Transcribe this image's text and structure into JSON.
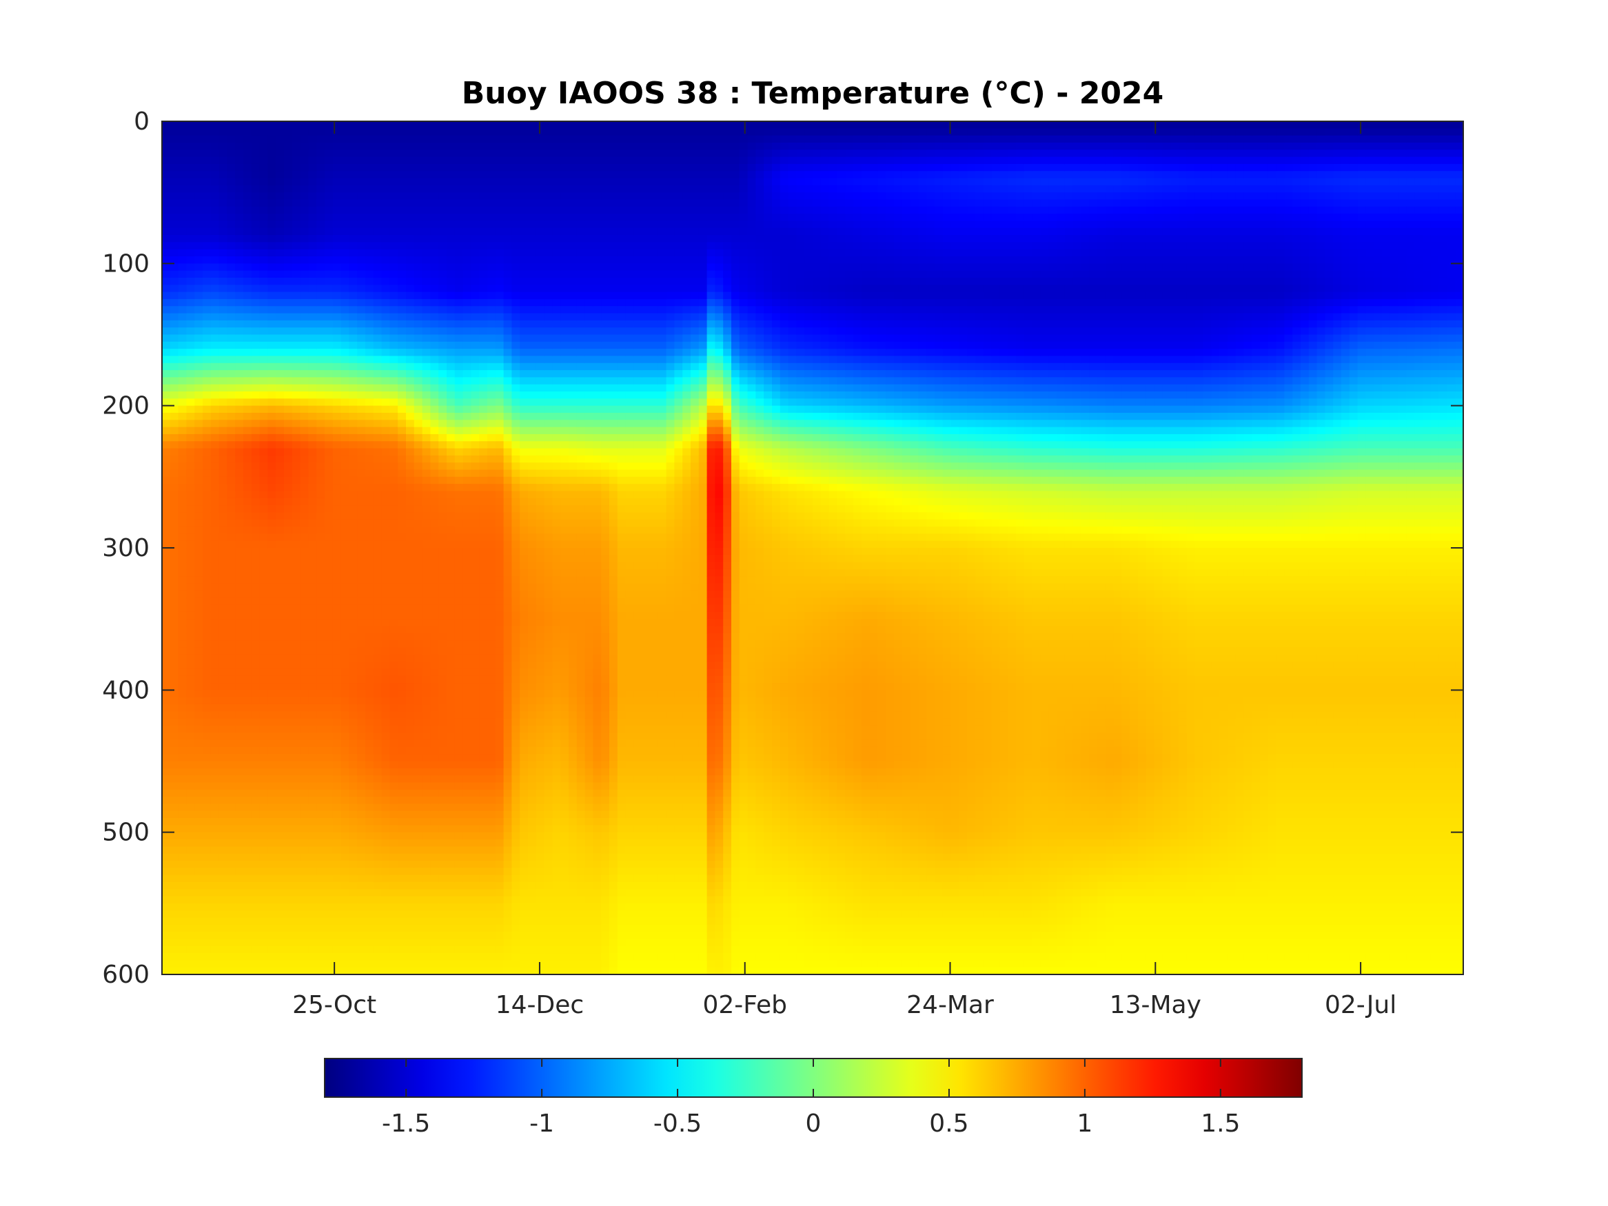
{
  "chart_data": {
    "type": "heatmap",
    "title": "Buoy IAOOS 38 : Temperature (°C) - 2024",
    "xlabel": "",
    "ylabel": "",
    "x_tick_labels": [
      "25-Oct",
      "14-Dec",
      "02-Feb",
      "24-Mar",
      "13-May",
      "02-Jul"
    ],
    "x_tick_days": [
      60,
      110,
      160,
      210,
      260,
      310
    ],
    "x_range_days": [
      18,
      335
    ],
    "y_tick_labels": [
      "0",
      "100",
      "200",
      "300",
      "400",
      "500",
      "600"
    ],
    "y_ticks": [
      0,
      100,
      200,
      300,
      400,
      500,
      600
    ],
    "ylim": [
      0,
      600
    ],
    "y_reversed": true,
    "grid": false,
    "colormap": "jet",
    "color_range": [
      -1.8,
      1.8
    ],
    "colorbar": {
      "placement": "bottom",
      "tick_labels": [
        "-1.5",
        "-1",
        "-0.5",
        "0",
        "0.5",
        "1",
        "1.5"
      ],
      "ticks": [
        -1.5,
        -1,
        -0.5,
        0,
        0.5,
        1,
        1.5
      ]
    },
    "depth_levels": [
      5,
      40,
      80,
      120,
      160,
      200,
      230,
      260,
      300,
      350,
      400,
      450,
      500,
      550,
      600
    ],
    "columns": [
      {
        "day": 18,
        "values": [
          -1.7,
          -1.6,
          -1.5,
          -1.2,
          -0.6,
          0.4,
          0.9,
          0.95,
          0.95,
          0.95,
          0.95,
          0.9,
          0.75,
          0.6,
          0.5
        ]
      },
      {
        "day": 30,
        "values": [
          -1.7,
          -1.6,
          -1.5,
          -1.1,
          -0.5,
          0.6,
          1.0,
          1.0,
          1.0,
          1.0,
          1.0,
          0.9,
          0.75,
          0.6,
          0.5
        ]
      },
      {
        "day": 45,
        "values": [
          -1.7,
          -1.7,
          -1.6,
          -1.2,
          -0.5,
          0.7,
          1.15,
          1.1,
          1.0,
          1.0,
          1.0,
          0.9,
          0.75,
          0.6,
          0.5
        ]
      },
      {
        "day": 60,
        "values": [
          -1.7,
          -1.6,
          -1.5,
          -1.2,
          -0.5,
          0.6,
          1.0,
          1.0,
          1.0,
          1.0,
          1.0,
          0.9,
          0.75,
          0.6,
          0.5
        ]
      },
      {
        "day": 75,
        "values": [
          -1.7,
          -1.6,
          -1.5,
          -1.3,
          -0.7,
          0.5,
          0.95,
          1.0,
          1.0,
          1.0,
          1.05,
          1.0,
          0.8,
          0.6,
          0.5
        ]
      },
      {
        "day": 90,
        "values": [
          -1.7,
          -1.6,
          -1.5,
          -1.4,
          -0.8,
          -0.2,
          0.6,
          0.95,
          1.0,
          1.0,
          1.0,
          1.0,
          0.8,
          0.6,
          0.5
        ]
      },
      {
        "day": 100,
        "values": [
          -1.7,
          -1.6,
          -1.5,
          -1.35,
          -0.8,
          0.0,
          0.7,
          0.95,
          1.0,
          1.0,
          1.0,
          1.0,
          0.8,
          0.6,
          0.5
        ]
      },
      {
        "day": 105,
        "values": [
          -1.7,
          -1.6,
          -1.5,
          -1.4,
          -1.0,
          -0.3,
          0.4,
          0.75,
          0.85,
          0.9,
          0.85,
          0.75,
          0.65,
          0.55,
          0.5
        ]
      },
      {
        "day": 115,
        "values": [
          -1.7,
          -1.6,
          -1.5,
          -1.4,
          -1.0,
          -0.3,
          0.4,
          0.7,
          0.8,
          0.85,
          0.8,
          0.7,
          0.6,
          0.55,
          0.5
        ]
      },
      {
        "day": 125,
        "values": [
          -1.7,
          -1.6,
          -1.5,
          -1.4,
          -1.0,
          -0.3,
          0.35,
          0.7,
          0.8,
          0.85,
          0.9,
          0.85,
          0.65,
          0.55,
          0.5
        ]
      },
      {
        "day": 130,
        "values": [
          -1.7,
          -1.6,
          -1.5,
          -1.4,
          -1.0,
          -0.3,
          0.35,
          0.6,
          0.7,
          0.75,
          0.75,
          0.7,
          0.6,
          0.5,
          0.45
        ]
      },
      {
        "day": 140,
        "values": [
          -1.7,
          -1.6,
          -1.5,
          -1.4,
          -1.0,
          -0.3,
          0.35,
          0.6,
          0.7,
          0.75,
          0.75,
          0.7,
          0.6,
          0.5,
          0.45
        ]
      },
      {
        "day": 150,
        "values": [
          -1.7,
          -1.6,
          -1.5,
          -1.4,
          -0.8,
          0.2,
          0.7,
          0.75,
          0.75,
          0.75,
          0.75,
          0.7,
          0.6,
          0.5,
          0.45
        ]
      },
      {
        "day": 152,
        "values": [
          -1.7,
          -1.6,
          -1.5,
          -1.2,
          -0.4,
          0.6,
          1.3,
          1.35,
          1.3,
          1.2,
          1.1,
          1.0,
          0.8,
          0.6,
          0.5
        ]
      },
      {
        "day": 155,
        "values": [
          -1.7,
          -1.6,
          -1.5,
          -1.3,
          -0.6,
          0.5,
          1.2,
          1.3,
          1.2,
          1.1,
          1.0,
          0.9,
          0.7,
          0.55,
          0.5
        ]
      },
      {
        "day": 158,
        "values": [
          -1.7,
          -1.6,
          -1.5,
          -1.4,
          -1.0,
          -0.2,
          0.4,
          0.65,
          0.7,
          0.7,
          0.7,
          0.65,
          0.55,
          0.5,
          0.45
        ]
      },
      {
        "day": 170,
        "values": [
          -1.7,
          -1.35,
          -1.5,
          -1.5,
          -1.2,
          -0.6,
          0.2,
          0.55,
          0.65,
          0.7,
          0.75,
          0.7,
          0.6,
          0.5,
          0.45
        ]
      },
      {
        "day": 190,
        "values": [
          -1.7,
          -1.3,
          -1.45,
          -1.55,
          -1.3,
          -0.7,
          0.0,
          0.45,
          0.6,
          0.75,
          0.8,
          0.8,
          0.65,
          0.55,
          0.45
        ]
      },
      {
        "day": 210,
        "values": [
          -1.7,
          -1.25,
          -1.4,
          -1.55,
          -1.35,
          -0.8,
          -0.2,
          0.35,
          0.6,
          0.7,
          0.75,
          0.75,
          0.7,
          0.55,
          0.45
        ]
      },
      {
        "day": 230,
        "values": [
          -1.7,
          -1.2,
          -1.4,
          -1.55,
          -1.4,
          -0.85,
          -0.3,
          0.3,
          0.55,
          0.65,
          0.7,
          0.7,
          0.65,
          0.55,
          0.45
        ]
      },
      {
        "day": 250,
        "values": [
          -1.7,
          -1.2,
          -1.45,
          -1.55,
          -1.4,
          -0.9,
          -0.35,
          0.25,
          0.55,
          0.65,
          0.7,
          0.75,
          0.65,
          0.5,
          0.45
        ]
      },
      {
        "day": 270,
        "values": [
          -1.7,
          -1.25,
          -1.45,
          -1.55,
          -1.4,
          -0.9,
          -0.35,
          0.25,
          0.5,
          0.6,
          0.65,
          0.65,
          0.6,
          0.5,
          0.45
        ]
      },
      {
        "day": 290,
        "values": [
          -1.7,
          -1.25,
          -1.45,
          -1.55,
          -1.3,
          -0.85,
          -0.3,
          0.25,
          0.5,
          0.6,
          0.65,
          0.6,
          0.55,
          0.5,
          0.45
        ]
      },
      {
        "day": 310,
        "values": [
          -1.7,
          -1.2,
          -1.4,
          -1.45,
          -1.0,
          -0.6,
          -0.2,
          0.3,
          0.5,
          0.6,
          0.65,
          0.6,
          0.55,
          0.5,
          0.45
        ]
      },
      {
        "day": 335,
        "values": [
          -1.7,
          -1.2,
          -1.4,
          -1.4,
          -0.95,
          -0.55,
          -0.2,
          0.3,
          0.5,
          0.6,
          0.65,
          0.6,
          0.55,
          0.5,
          0.45
        ]
      }
    ]
  }
}
